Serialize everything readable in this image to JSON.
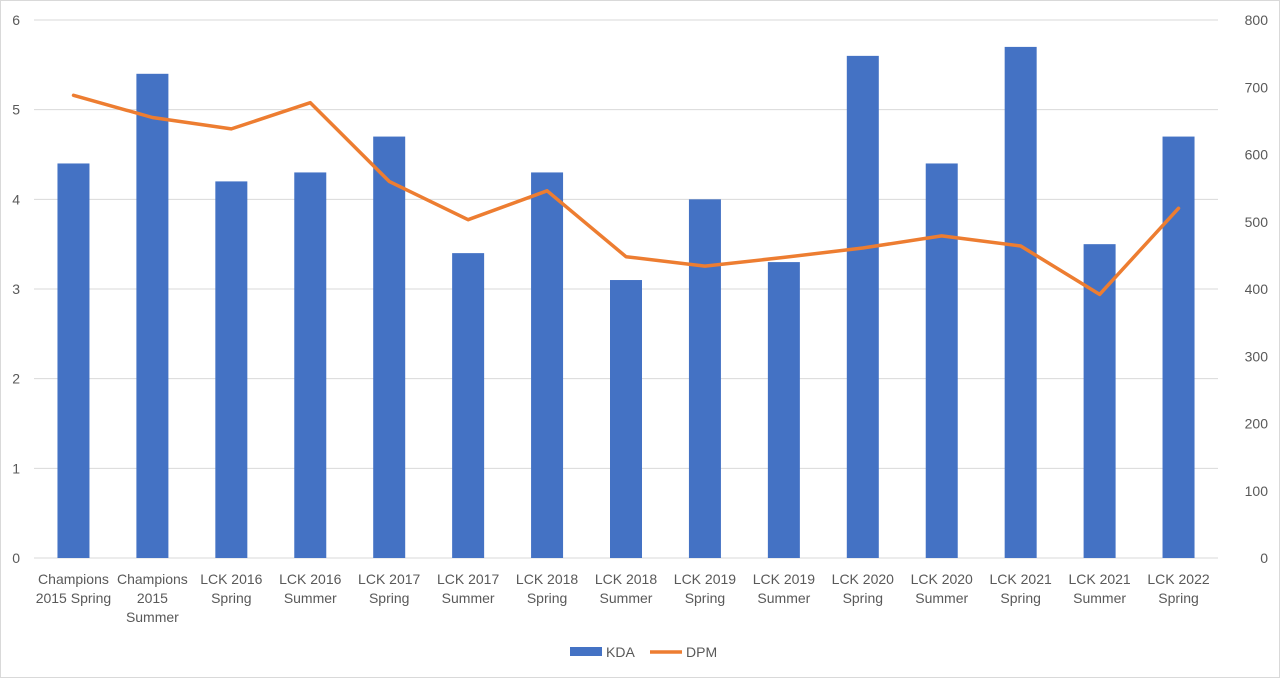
{
  "chart_data": {
    "type": "bar",
    "title": "",
    "xlabel": "",
    "ylabel": "",
    "y2label": "",
    "categories": [
      [
        "Champions",
        "2015 Spring"
      ],
      [
        "Champions",
        "2015",
        "Summer"
      ],
      [
        "LCK 2016",
        "Spring"
      ],
      [
        "LCK 2016",
        "Summer"
      ],
      [
        "LCK 2017",
        "Spring"
      ],
      [
        "LCK 2017",
        "Summer"
      ],
      [
        "LCK 2018",
        "Spring"
      ],
      [
        "LCK 2018",
        "Summer"
      ],
      [
        "LCK 2019",
        "Spring"
      ],
      [
        "LCK 2019",
        "Summer"
      ],
      [
        "LCK 2020",
        "Spring"
      ],
      [
        "LCK 2020",
        "Summer"
      ],
      [
        "LCK 2021",
        "Spring"
      ],
      [
        "LCK 2021",
        "Summer"
      ],
      [
        "LCK 2022",
        "Spring"
      ]
    ],
    "series": [
      {
        "name": "KDA",
        "type": "bar",
        "axis": "left",
        "color": "#4472c4",
        "values": [
          4.4,
          5.4,
          4.2,
          4.3,
          4.7,
          3.4,
          4.3,
          3.1,
          4.0,
          3.3,
          5.6,
          4.4,
          5.7,
          3.5,
          4.7
        ]
      },
      {
        "name": "DPM",
        "type": "line",
        "axis": "right",
        "color": "#ed7d31",
        "values": [
          688,
          655,
          638,
          677,
          560,
          503,
          546,
          448,
          434,
          447,
          461,
          479,
          464,
          392,
          520
        ]
      }
    ],
    "ylim": [
      0,
      6
    ],
    "yticks": [
      "0",
      "1",
      "2",
      "3",
      "4",
      "5",
      "6"
    ],
    "y2lim": [
      0,
      800
    ],
    "y2ticks": [
      "0",
      "100",
      "200",
      "300",
      "400",
      "500",
      "600",
      "700",
      "800"
    ],
    "grid": true,
    "legend": "bottom-center"
  }
}
